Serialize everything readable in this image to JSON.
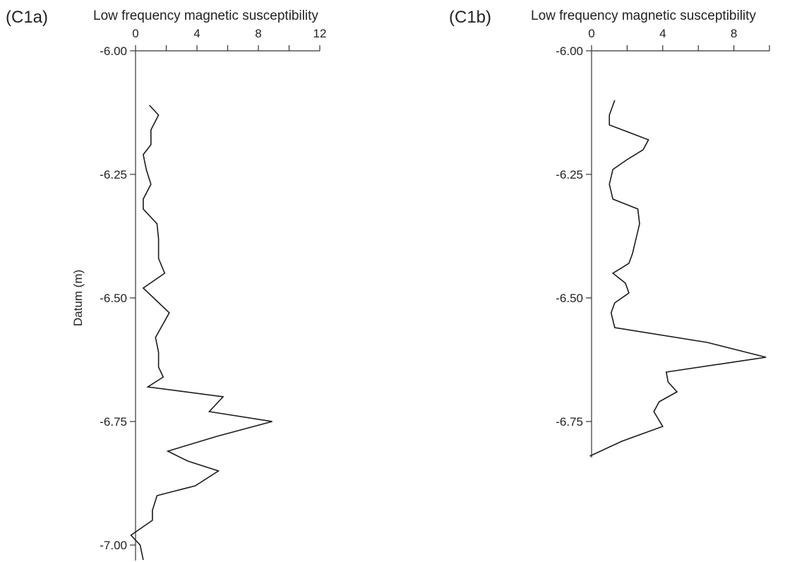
{
  "chart_data": [
    {
      "type": "line",
      "panel_label": "(C1a)",
      "title": "Low frequency magnetic susceptibility",
      "xlabel": "",
      "ylabel": "Datum (m)",
      "xlim": [
        0,
        12
      ],
      "ylim": [
        -6.0,
        -7.03
      ],
      "x_ticks": [
        0,
        4,
        8,
        12
      ],
      "y_ticks": [
        "-6.00",
        "-6.25",
        "-6.50",
        "-6.75",
        "-7.00"
      ],
      "grid": false,
      "series": [
        {
          "x": [
            0.9,
            1.5,
            1.0,
            1.0,
            0.5,
            0.7,
            1.0,
            0.5,
            0.5,
            1.4,
            1.5,
            1.5,
            1.9,
            0.5,
            2.2,
            1.3,
            1.5,
            1.5,
            1.8,
            0.8,
            5.7,
            4.8,
            8.9,
            5.3,
            2.1,
            3.4,
            5.4,
            3.9,
            1.4,
            1.1,
            1.1,
            -0.3,
            0.3,
            0.5
          ],
          "y": [
            -6.11,
            -6.13,
            -6.16,
            -6.19,
            -6.21,
            -6.24,
            -6.27,
            -6.3,
            -6.32,
            -6.35,
            -6.38,
            -6.42,
            -6.45,
            -6.48,
            -6.53,
            -6.58,
            -6.61,
            -6.64,
            -6.66,
            -6.68,
            -6.7,
            -6.73,
            -6.75,
            -6.78,
            -6.81,
            -6.83,
            -6.85,
            -6.88,
            -6.9,
            -6.93,
            -6.95,
            -6.98,
            -7.0,
            -7.03
          ]
        }
      ]
    },
    {
      "type": "line",
      "panel_label": "(C1b)",
      "title": "Low frequency magnetic susceptibility",
      "xlabel": "",
      "ylabel": "",
      "xlim": [
        0,
        10
      ],
      "ylim": [
        -6.0,
        -6.82
      ],
      "x_ticks": [
        0,
        4,
        8
      ],
      "y_ticks": [
        "-6.00",
        "-6.25",
        "-6.50",
        "-6.75"
      ],
      "grid": false,
      "series": [
        {
          "x": [
            1.3,
            1.0,
            1.0,
            3.2,
            2.9,
            2.0,
            1.2,
            1.0,
            1.2,
            2.6,
            2.7,
            2.5,
            2.3,
            2.1,
            1.2,
            1.9,
            2.1,
            1.3,
            1.1,
            1.3,
            6.5,
            9.8,
            4.2,
            4.3,
            4.8,
            3.8,
            3.5,
            4.0,
            1.7,
            -0.1
          ],
          "y": [
            -6.1,
            -6.13,
            -6.15,
            -6.18,
            -6.2,
            -6.22,
            -6.24,
            -6.27,
            -6.3,
            -6.32,
            -6.35,
            -6.38,
            -6.41,
            -6.43,
            -6.45,
            -6.47,
            -6.49,
            -6.51,
            -6.53,
            -6.56,
            -6.59,
            -6.62,
            -6.65,
            -6.67,
            -6.69,
            -6.71,
            -6.73,
            -6.76,
            -6.79,
            -6.82
          ]
        }
      ]
    }
  ]
}
